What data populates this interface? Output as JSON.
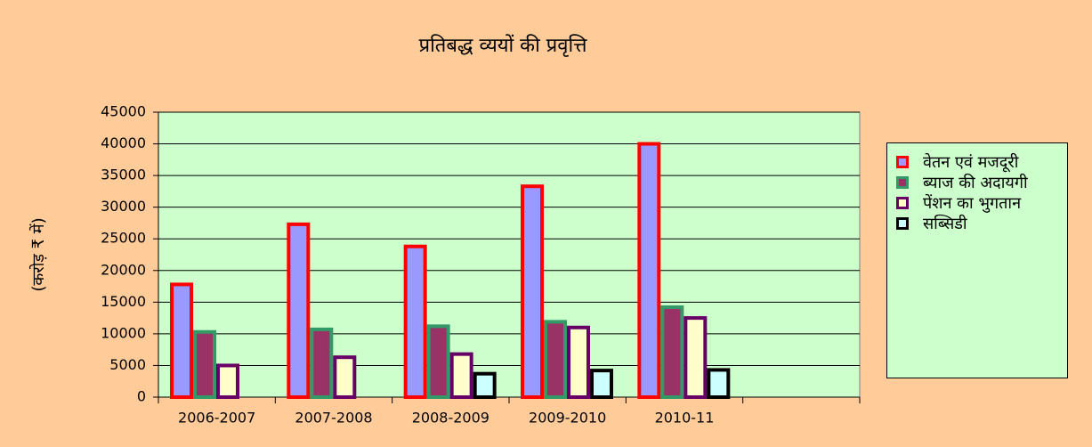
{
  "chart_data": {
    "type": "bar",
    "title": "प्रतिबद्ध व्ययों की प्रवृत्ति",
    "y_label": "(करोड़ ₹ में)",
    "categories": [
      "2006-2007",
      "2007-2008",
      "2008-2009",
      "2009-2010",
      "2010-11",
      null
    ],
    "series": [
      {
        "name": "वेतन एवं मजदूरी",
        "color": "#9999ff",
        "edgecolor": "#ff0000",
        "values": [
          17800,
          27300,
          23800,
          33300,
          40000,
          null
        ]
      },
      {
        "name": "ब्याज की अदायगी",
        "color": "#993366",
        "edgecolor": "#339966",
        "values": [
          10300,
          10700,
          11200,
          11900,
          14200,
          null
        ]
      },
      {
        "name": "पेंशन का भुगतान",
        "color": "#ffffcc",
        "edgecolor": "#660066",
        "values": [
          5000,
          6300,
          6800,
          11000,
          12500,
          null
        ]
      },
      {
        "name": "सब्सिडी",
        "color": "#ccffff",
        "edgecolor": "#000000",
        "values": [
          null,
          null,
          3700,
          4200,
          4300,
          null
        ]
      }
    ],
    "ylim": [
      0,
      45000
    ],
    "yticks": [
      0,
      5000,
      10000,
      15000,
      20000,
      25000,
      30000,
      35000,
      40000,
      45000
    ],
    "grid": true,
    "legend": "right"
  }
}
